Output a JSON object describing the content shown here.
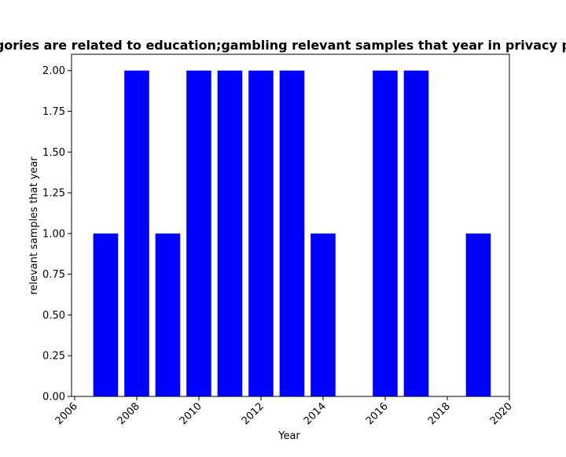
{
  "chart_data": {
    "type": "bar",
    "title": "Categories are related to education;gambling relevant samples that year in privacy policies",
    "xlabel": "Year",
    "ylabel": "relevant samples that year",
    "x": [
      2007,
      2008,
      2009,
      2010,
      2011,
      2012,
      2013,
      2014,
      2016,
      2017,
      2019
    ],
    "values": [
      1,
      2,
      1,
      2,
      2,
      2,
      2,
      1,
      2,
      2,
      1
    ],
    "bar_width_years": 0.8,
    "xlim": [
      2005.9,
      2020.0
    ],
    "ylim": [
      0,
      2.1
    ],
    "xticks": [
      2006,
      2008,
      2010,
      2012,
      2014,
      2016,
      2018,
      2020
    ],
    "xtick_labels": [
      "2006",
      "2008",
      "2010",
      "2012",
      "2014",
      "2016",
      "2018",
      "2020"
    ],
    "yticks": [
      0,
      0.25,
      0.5,
      0.75,
      1.0,
      1.25,
      1.5,
      1.75,
      2.0
    ],
    "ytick_labels": [
      "0.00",
      "0.25",
      "0.50",
      "0.75",
      "1.00",
      "1.25",
      "1.50",
      "1.75",
      "2.00"
    ],
    "bar_color": "#0000ff",
    "grid": false,
    "legend": "none"
  }
}
